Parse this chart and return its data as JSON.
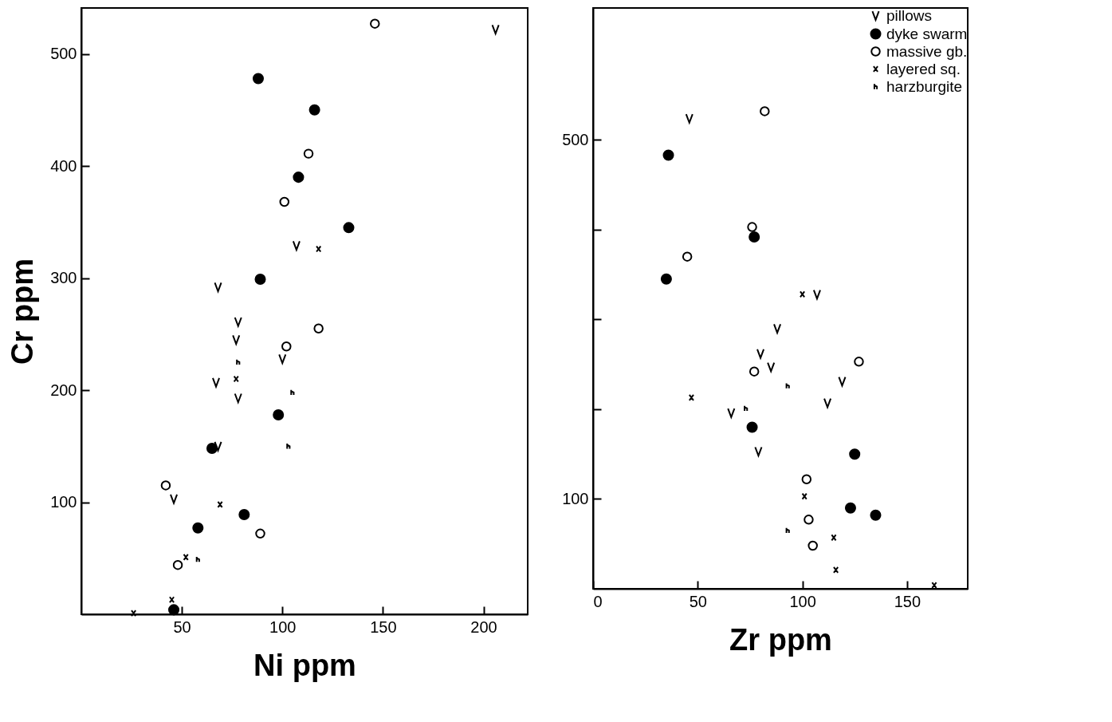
{
  "chart_data": [
    {
      "type": "scatter",
      "xlabel": "Ni ppm",
      "ylabel": "Cr ppm",
      "xlim": [
        0,
        222
      ],
      "ylim": [
        0,
        541
      ],
      "xticks": [
        50,
        100,
        150,
        200
      ],
      "yticks": [
        100,
        200,
        300,
        400,
        500
      ],
      "grid": false,
      "series": [
        {
          "color": "#000000",
          "x": [
            206,
            107,
            68,
            78,
            77,
            67,
            78,
            100,
            68,
            46
          ],
          "values": [
            522,
            329,
            292,
            261,
            245,
            207,
            193,
            228,
            150,
            103
          ]
        },
        {
          "color": "#000000",
          "x": [
            88,
            116,
            108,
            133,
            89,
            98,
            65,
            81,
            58,
            46
          ],
          "values": [
            478,
            450,
            390,
            345,
            299,
            178,
            148,
            89,
            77,
            4
          ]
        },
        {
          "color": "#000000",
          "x": [
            146,
            113,
            101,
            102,
            118,
            42,
            89,
            48
          ],
          "values": [
            527,
            411,
            368,
            239,
            255,
            115,
            72,
            44
          ]
        },
        {
          "color": "#000000",
          "x": [
            118,
            77,
            69,
            52,
            45,
            26
          ],
          "values": [
            326,
            210,
            98,
            51,
            13,
            1
          ]
        },
        {
          "color": "#000000",
          "x": [
            78,
            105,
            103,
            58
          ],
          "values": [
            225,
            198,
            150,
            49
          ]
        }
      ]
    },
    {
      "type": "scatter",
      "xlabel": "Zr ppm",
      "xlim": [
        0,
        179
      ],
      "ylim": [
        0,
        647
      ],
      "xticks": [
        0,
        50,
        100,
        150
      ],
      "yticks": [
        100,
        {
          "value": 200,
          "label": null
        },
        {
          "value": 300,
          "label": null
        },
        {
          "value": 400,
          "label": null
        },
        500
      ],
      "grid": false,
      "legend": "top right",
      "series": [
        {
          "name": "pillows",
          "color": "#000000",
          "x": [
            46,
            107,
            88,
            80,
            85,
            112,
            119,
            66,
            79
          ],
          "values": [
            524,
            328,
            290,
            262,
            247,
            207,
            231,
            196,
            153
          ]
        },
        {
          "name": "dyke swarm",
          "color": "#000000",
          "x": [
            36,
            77,
            35,
            76,
            125,
            123,
            135
          ],
          "values": [
            483,
            392,
            345,
            180,
            150,
            90,
            82
          ]
        },
        {
          "name": "massive gb.",
          "color": "#000000",
          "x": [
            82,
            76,
            45,
            77,
            127,
            102,
            103,
            105
          ],
          "values": [
            532,
            403,
            370,
            242,
            253,
            122,
            77,
            48
          ]
        },
        {
          "name": "layered sq.",
          "color": "#000000",
          "x": [
            47,
            100,
            101,
            115,
            116,
            163
          ],
          "values": [
            213,
            328,
            103,
            57,
            21,
            4
          ]
        },
        {
          "name": "harzburgite",
          "color": "#000000",
          "x": [
            93,
            73,
            93
          ],
          "values": [
            226,
            201,
            65
          ]
        }
      ]
    }
  ]
}
